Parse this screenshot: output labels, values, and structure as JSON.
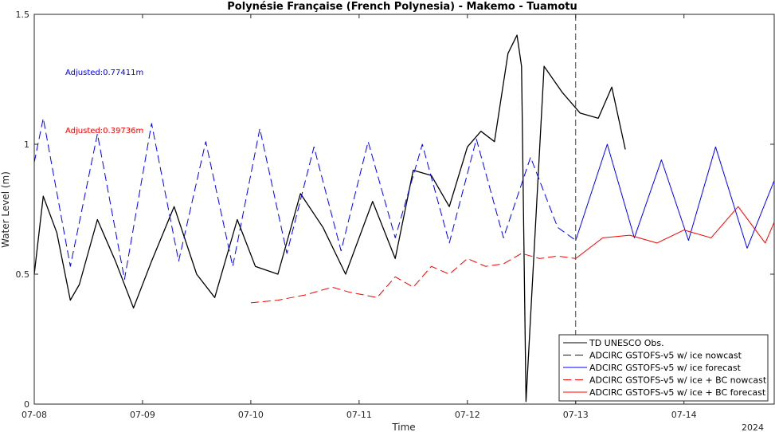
{
  "chart_data": {
    "type": "line",
    "title": "Polynésie Française (French Polynesia) - Makemo - Tuamotu",
    "xlabel": "Time",
    "ylabel": "Water Level (m)",
    "xlim": [
      "07-08",
      "07-14 20:00"
    ],
    "ylim": [
      0,
      1.5
    ],
    "x_ticks": [
      "07-08",
      "07-09",
      "07-10",
      "07-11",
      "07-12",
      "07-13",
      "07-14"
    ],
    "y_ticks": [
      "0",
      "0.5",
      "1",
      "1.5"
    ],
    "year_label": "2024",
    "nowcast_boundary": "07-13",
    "annotations": [
      {
        "text": "Adjusted:0.77411m",
        "color": "#0000ff"
      },
      {
        "text": "Adjusted:0.39736m",
        "color": "#ff0000"
      }
    ],
    "legend_position": "bottom-right",
    "series": [
      {
        "name": "TD UNESCO Obs.",
        "color": "#000000",
        "style": "solid",
        "x": [
          "07-08 00:00",
          "07-08 02:00",
          "07-08 05:00",
          "07-08 08:00",
          "07-08 10:00",
          "07-08 14:00",
          "07-08 18:00",
          "07-08 22:00",
          "07-09 02:00",
          "07-09 07:00",
          "07-09 12:00",
          "07-09 16:00",
          "07-09 21:00",
          "07-10 01:00",
          "07-10 06:00",
          "07-10 11:00",
          "07-10 16:00",
          "07-10 21:00",
          "07-11 03:00",
          "07-11 08:00",
          "07-11 12:00",
          "07-11 16:00",
          "07-11 20:00",
          "07-12 00:00",
          "07-12 03:00",
          "07-12 06:00",
          "07-12 09:00",
          "07-12 11:00",
          "07-12 12:00",
          "07-12 13:00",
          "07-12 17:00",
          "07-12 21:00",
          "07-13 01:00",
          "07-13 05:00",
          "07-13 08:00",
          "07-13 11:00"
        ],
        "y": [
          0.5,
          0.8,
          0.66,
          0.4,
          0.46,
          0.71,
          0.55,
          0.37,
          0.55,
          0.76,
          0.5,
          0.41,
          0.71,
          0.53,
          0.5,
          0.81,
          0.68,
          0.5,
          0.78,
          0.56,
          0.9,
          0.88,
          0.76,
          0.99,
          1.05,
          1.01,
          1.35,
          1.42,
          1.3,
          0.01,
          1.3,
          1.2,
          1.12,
          1.1,
          1.22,
          0.98
        ]
      },
      {
        "name": "ADCIRC GSTOFS-v5 w/ ice nowcast",
        "color": "#0000ff",
        "style": "dashed",
        "x": [
          "07-08 00:00",
          "07-08 02:00",
          "07-08 08:00",
          "07-08 14:00",
          "07-08 20:00",
          "07-09 02:00",
          "07-09 08:00",
          "07-09 14:00",
          "07-09 20:00",
          "07-10 02:00",
          "07-10 08:00",
          "07-10 14:00",
          "07-10 20:00",
          "07-11 02:00",
          "07-11 08:00",
          "07-11 14:00",
          "07-11 20:00",
          "07-12 02:00",
          "07-12 08:00",
          "07-12 14:00",
          "07-12 20:00",
          "07-13 00:00"
        ],
        "y": [
          0.93,
          1.1,
          0.53,
          1.04,
          0.48,
          1.08,
          0.55,
          1.01,
          0.53,
          1.06,
          0.58,
          0.99,
          0.59,
          1.01,
          0.64,
          1.0,
          0.62,
          1.02,
          0.64,
          0.95,
          0.68,
          0.63
        ]
      },
      {
        "name": "ADCIRC GSTOFS-v5 w/ ice forecast",
        "color": "#0000ff",
        "style": "solid",
        "x": [
          "07-13 00:00",
          "07-13 07:00",
          "07-13 13:00",
          "07-13 19:00",
          "07-14 01:00",
          "07-14 07:00",
          "07-14 14:00",
          "07-14 20:00"
        ],
        "y": [
          0.63,
          1.0,
          0.64,
          0.94,
          0.63,
          0.99,
          0.6,
          0.86
        ]
      },
      {
        "name": "ADCIRC GSTOFS-v5 w/ ice + BC nowcast",
        "color": "#ff0000",
        "style": "dashed",
        "x": [
          "07-10 00:00",
          "07-10 06:00",
          "07-10 12:00",
          "07-10 18:00",
          "07-10 22:00",
          "07-11 04:00",
          "07-11 08:00",
          "07-11 12:00",
          "07-11 16:00",
          "07-11 20:00",
          "07-12 00:00",
          "07-12 04:00",
          "07-12 08:00",
          "07-12 12:00",
          "07-12 16:00",
          "07-12 20:00",
          "07-13 00:00"
        ],
        "y": [
          0.39,
          0.4,
          0.42,
          0.45,
          0.43,
          0.41,
          0.49,
          0.45,
          0.53,
          0.5,
          0.56,
          0.53,
          0.54,
          0.58,
          0.56,
          0.57,
          0.56
        ]
      },
      {
        "name": "ADCIRC GSTOFS-v5 w/ ice + BC forecast",
        "color": "#ff0000",
        "style": "solid",
        "x": [
          "07-13 00:00",
          "07-13 06:00",
          "07-13 12:00",
          "07-13 18:00",
          "07-14 00:00",
          "07-14 06:00",
          "07-14 12:00",
          "07-14 18:00",
          "07-14 20:00"
        ],
        "y": [
          0.56,
          0.64,
          0.65,
          0.62,
          0.67,
          0.64,
          0.76,
          0.62,
          0.7
        ]
      }
    ]
  }
}
